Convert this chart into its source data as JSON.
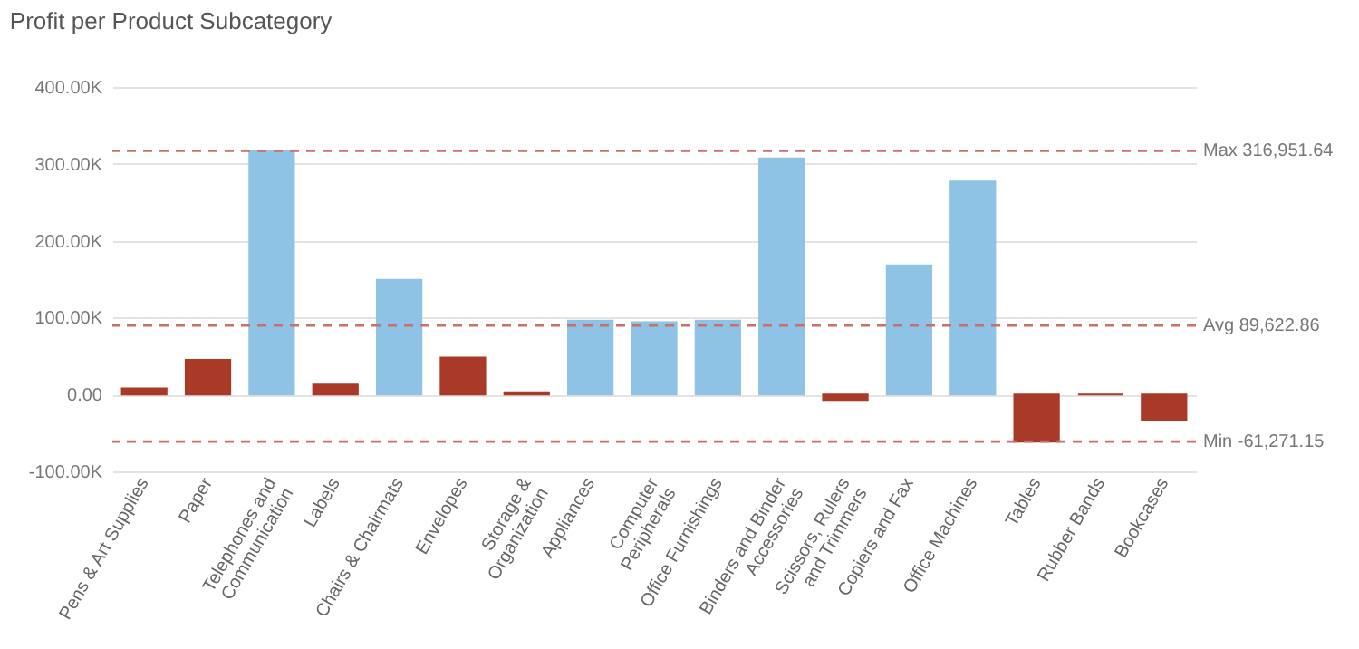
{
  "chart_data": {
    "type": "bar",
    "title": "Profit per Product Subcategory",
    "categories": [
      "Pens & Art Supplies",
      "Paper",
      "Telephones and Communication",
      "Labels",
      "Chairs & Chairmats",
      "Envelopes",
      "Storage & Organization",
      "Appliances",
      "Computer Peripherals",
      "Office Furnishings",
      "Binders and Binder Accessories",
      "Scissors, Rulers and Trimmers",
      "Copiers and Fax",
      "Office Machines",
      "Tables",
      "Rubber Bands",
      "Bookcases"
    ],
    "values": [
      8000,
      45000,
      316951.64,
      13000,
      149000,
      48000,
      3000,
      96000,
      94000,
      96000,
      307000,
      -7000,
      168000,
      277000,
      -61271.15,
      0,
      -33000
    ],
    "colors": [
      "#a93a28",
      "#a93a28",
      "#8fc3e5",
      "#a93a28",
      "#8fc3e5",
      "#a93a28",
      "#a93a28",
      "#8fc3e5",
      "#8fc3e5",
      "#8fc3e5",
      "#8fc3e5",
      "#a93a28",
      "#8fc3e5",
      "#8fc3e5",
      "#a93a28",
      "#a93a28",
      "#a93a28"
    ],
    "ylim": [
      -100000,
      400000
    ],
    "yticks": [
      {
        "value": -100000,
        "label": "-100.00K"
      },
      {
        "value": 0,
        "label": "0.00"
      },
      {
        "value": 100000,
        "label": "100.00K"
      },
      {
        "value": 200000,
        "label": "200.00K"
      },
      {
        "value": 300000,
        "label": "300.00K"
      },
      {
        "value": 400000,
        "label": "400.00K"
      }
    ],
    "ref_lines": [
      {
        "axis": "y",
        "value": 316951.64,
        "label": "Max 316,951.64",
        "color": "#c8706a",
        "line_style": "dashed"
      },
      {
        "axis": "y",
        "value": 89622.86,
        "label": "Avg 89,622.86",
        "color": "#c8706a",
        "line_style": "dashed"
      },
      {
        "axis": "y",
        "value": -61271.15,
        "label": "Min -61,271.15",
        "color": "#c8706a",
        "line_style": "dashed"
      }
    ],
    "grid": "y"
  }
}
